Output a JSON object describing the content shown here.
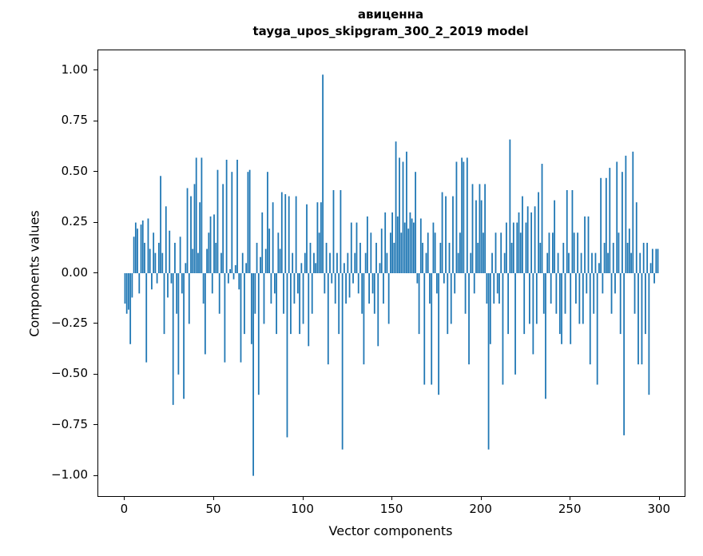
{
  "title": {
    "line1": "авиценна",
    "line2": "tayga_upos_skipgram_300_2_2019 model"
  },
  "axes": {
    "xlabel": "Vector components",
    "ylabel": "Components values",
    "x_tick_values": [
      0,
      50,
      100,
      150,
      200,
      250,
      300
    ],
    "x_tick_labels": [
      "0",
      "50",
      "100",
      "150",
      "200",
      "250",
      "300"
    ],
    "y_tick_values": [
      1.0,
      0.75,
      0.5,
      0.25,
      0.0,
      -0.25,
      -0.5,
      -0.75,
      -1.0
    ],
    "y_tick_labels": [
      "1.00",
      "0.75",
      "0.50",
      "0.25",
      "0.00",
      "−0.25",
      "−0.50",
      "−0.75",
      "−1.00"
    ]
  },
  "chart_data": {
    "type": "bar",
    "title": "авиценна\ntayga_upos_skipgram_300_2_2019 model",
    "xlabel": "Vector components",
    "ylabel": "Components values",
    "xlim": [
      -15,
      314
    ],
    "ylim": [
      -1.1,
      1.1
    ],
    "grid": false,
    "legend": false,
    "bar_color": "#1f77b4",
    "n_components": 300,
    "values": [
      -0.15,
      -0.2,
      -0.18,
      -0.35,
      -0.12,
      0.18,
      0.25,
      0.22,
      -0.1,
      0.24,
      0.26,
      0.15,
      -0.44,
      0.27,
      0.12,
      -0.08,
      0.2,
      0.1,
      -0.05,
      0.15,
      0.48,
      0.1,
      -0.3,
      0.33,
      -0.12,
      0.21,
      -0.05,
      -0.65,
      0.15,
      -0.2,
      -0.5,
      0.18,
      -0.1,
      -0.62,
      0.05,
      0.42,
      -0.25,
      0.38,
      0.12,
      0.44,
      0.57,
      0.1,
      0.35,
      0.57,
      -0.15,
      -0.4,
      0.12,
      0.2,
      0.28,
      -0.1,
      0.29,
      0.15,
      0.51,
      -0.2,
      0.1,
      0.44,
      -0.44,
      0.56,
      -0.05,
      0.02,
      0.5,
      -0.03,
      0.04,
      0.56,
      -0.08,
      -0.44,
      0.1,
      -0.3,
      0.05,
      0.5,
      0.51,
      -0.35,
      -1.0,
      -0.2,
      0.15,
      -0.6,
      0.08,
      0.3,
      -0.25,
      0.12,
      0.5,
      0.22,
      -0.15,
      0.35,
      -0.1,
      -0.3,
      0.2,
      0.12,
      0.4,
      -0.2,
      0.39,
      -0.81,
      0.38,
      -0.3,
      0.1,
      -0.15,
      0.38,
      -0.1,
      -0.3,
      0.05,
      -0.25,
      0.1,
      0.34,
      -0.36,
      0.15,
      -0.2,
      0.1,
      0.05,
      0.35,
      0.2,
      0.35,
      0.98,
      -0.1,
      0.15,
      -0.45,
      0.1,
      -0.05,
      0.41,
      -0.15,
      0.1,
      -0.3,
      0.41,
      -0.87,
      0.05,
      -0.15,
      0.1,
      -0.12,
      0.25,
      -0.05,
      0.1,
      0.25,
      -0.1,
      0.15,
      -0.2,
      -0.45,
      0.1,
      0.28,
      -0.15,
      0.2,
      -0.1,
      -0.2,
      0.15,
      -0.36,
      0.05,
      0.22,
      -0.15,
      0.3,
      0.1,
      -0.25,
      0.2,
      0.3,
      0.15,
      0.65,
      0.28,
      0.57,
      0.2,
      0.55,
      0.25,
      0.6,
      0.22,
      0.3,
      0.27,
      0.25,
      0.5,
      -0.05,
      -0.3,
      0.27,
      0.15,
      -0.55,
      0.1,
      0.2,
      -0.15,
      -0.55,
      0.25,
      0.2,
      -0.1,
      -0.6,
      0.15,
      0.4,
      -0.05,
      0.38,
      -0.3,
      0.15,
      -0.25,
      0.38,
      -0.1,
      0.55,
      0.1,
      0.2,
      0.57,
      0.55,
      -0.2,
      0.57,
      -0.45,
      0.1,
      0.44,
      -0.1,
      0.36,
      0.15,
      0.44,
      0.36,
      0.2,
      0.44,
      -0.15,
      -0.87,
      -0.35,
      0.1,
      -0.15,
      0.2,
      -0.1,
      -0.15,
      0.2,
      -0.55,
      0.1,
      0.25,
      -0.3,
      0.66,
      0.15,
      0.25,
      -0.5,
      0.25,
      0.3,
      0.2,
      0.38,
      -0.3,
      0.25,
      0.33,
      -0.25,
      0.3,
      -0.4,
      0.33,
      -0.25,
      0.4,
      0.15,
      0.54,
      -0.2,
      -0.62,
      0.1,
      0.2,
      -0.15,
      0.2,
      0.36,
      -0.2,
      0.1,
      -0.3,
      -0.35,
      0.15,
      -0.2,
      0.41,
      0.1,
      -0.35,
      0.41,
      0.2,
      -0.15,
      0.2,
      -0.25,
      0.1,
      -0.25,
      0.28,
      -0.1,
      0.28,
      -0.45,
      0.1,
      -0.2,
      0.1,
      -0.55,
      0.05,
      0.47,
      -0.1,
      0.15,
      0.47,
      0.1,
      0.52,
      -0.2,
      0.15,
      -0.1,
      0.55,
      0.2,
      -0.3,
      0.5,
      -0.8,
      0.58,
      0.15,
      0.22,
      0.1,
      0.6,
      -0.2,
      0.35,
      -0.45,
      0.1,
      -0.45,
      0.15,
      -0.3,
      0.15,
      -0.6,
      0.05,
      0.12,
      -0.05,
      0.12,
      0.12
    ]
  }
}
